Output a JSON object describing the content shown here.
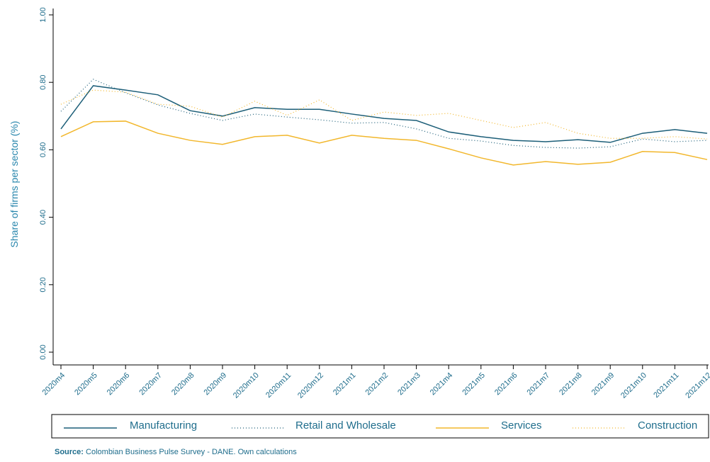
{
  "chart_data": {
    "type": "line",
    "y_label": "Share of firms per sector (%)",
    "categories": [
      "2020m4",
      "2020m5",
      "2020m6",
      "2020m7",
      "2020m8",
      "2020m9",
      "2020m10",
      "2020m11",
      "2020m12",
      "2021m1",
      "2021m2",
      "2021m3",
      "2021m4",
      "2021m5",
      "2021m6",
      "2021m7",
      "2021m8",
      "2021m9",
      "2021m10",
      "2021m11",
      "2021m12"
    ],
    "series": [
      {
        "name": "Manufacturing",
        "color": "#1c5e78",
        "style": "solid",
        "values": [
          0.662,
          0.79,
          0.777,
          0.763,
          0.716,
          0.7,
          0.725,
          0.72,
          0.72,
          0.706,
          0.693,
          0.687,
          0.653,
          0.639,
          0.628,
          0.624,
          0.63,
          0.622,
          0.649,
          0.66,
          0.649
        ]
      },
      {
        "name": "Retail and Wholesale",
        "color": "#1c5e78",
        "style": "dotted",
        "values": [
          0.714,
          0.809,
          0.769,
          0.733,
          0.708,
          0.687,
          0.706,
          0.697,
          0.689,
          0.679,
          0.681,
          0.662,
          0.634,
          0.626,
          0.613,
          0.607,
          0.605,
          0.609,
          0.632,
          0.624,
          0.628
        ]
      },
      {
        "name": "Services",
        "color": "#f2b72c",
        "style": "solid",
        "values": [
          0.639,
          0.683,
          0.685,
          0.649,
          0.628,
          0.616,
          0.639,
          0.643,
          0.62,
          0.643,
          0.634,
          0.628,
          0.603,
          0.576,
          0.555,
          0.565,
          0.557,
          0.563,
          0.595,
          0.592,
          0.571
        ]
      },
      {
        "name": "Construction",
        "color": "#f2b72c",
        "style": "dotted",
        "values": [
          0.735,
          0.777,
          0.771,
          0.735,
          0.729,
          0.697,
          0.744,
          0.702,
          0.748,
          0.687,
          0.712,
          0.702,
          0.708,
          0.687,
          0.666,
          0.681,
          0.649,
          0.634,
          0.634,
          0.639,
          0.632
        ]
      }
    ],
    "ylim": [
      0,
      1
    ],
    "yticks": [
      {
        "value": 0,
        "label": "0.00"
      },
      {
        "value": 0.2,
        "label": "0.20"
      },
      {
        "value": 0.4,
        "label": "0.40"
      },
      {
        "value": 0.6,
        "label": "0.60"
      },
      {
        "value": 0.8,
        "label": "0.80"
      },
      {
        "value": 1,
        "label": "1.00"
      }
    ],
    "grid": false,
    "legend": "bottom",
    "source_label": "Source:",
    "source_text": "Colombian Business Pulse Survey - DANE. Own calculations"
  }
}
